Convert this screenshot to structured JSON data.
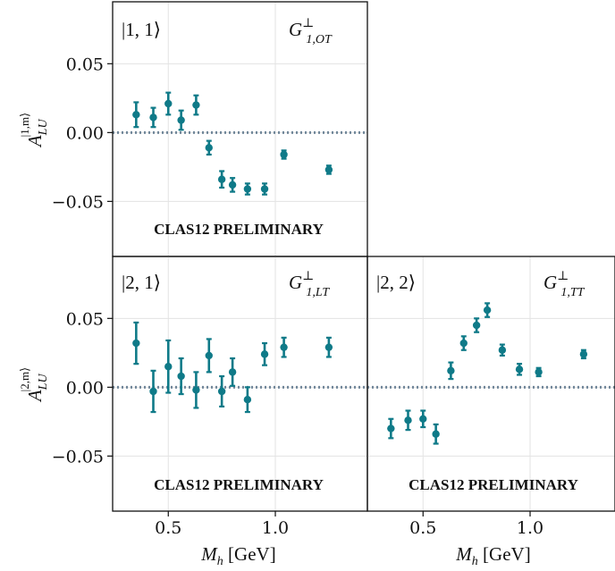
{
  "chart_data": [
    {
      "type": "scatter",
      "panel": "top-left",
      "state_label": "|1, 1⟩",
      "function_label": "G⊥1,OT",
      "watermark": "CLAS12 PRELIMINARY",
      "ylabel": "A_LU^{|1,m⟩}",
      "xlabel": "",
      "ylim": [
        -0.09,
        0.095
      ],
      "xlim": [
        0.24,
        1.43
      ],
      "yticks": [
        "0.05",
        "0.00",
        "−0.05"
      ],
      "xticks": [],
      "zero_line": true,
      "grid": true,
      "points": [
        {
          "x": 0.35,
          "y": 0.013,
          "err": 0.009
        },
        {
          "x": 0.43,
          "y": 0.011,
          "err": 0.007
        },
        {
          "x": 0.5,
          "y": 0.021,
          "err": 0.008
        },
        {
          "x": 0.56,
          "y": 0.009,
          "err": 0.007
        },
        {
          "x": 0.63,
          "y": 0.02,
          "err": 0.007
        },
        {
          "x": 0.69,
          "y": -0.011,
          "err": 0.005
        },
        {
          "x": 0.75,
          "y": -0.034,
          "err": 0.006
        },
        {
          "x": 0.8,
          "y": -0.038,
          "err": 0.005
        },
        {
          "x": 0.87,
          "y": -0.041,
          "err": 0.004
        },
        {
          "x": 0.95,
          "y": -0.041,
          "err": 0.004
        },
        {
          "x": 1.04,
          "y": -0.016,
          "err": 0.003
        },
        {
          "x": 1.25,
          "y": -0.027,
          "err": 0.003
        }
      ]
    },
    {
      "type": "scatter",
      "panel": "bottom-left",
      "state_label": "|2, 1⟩",
      "function_label": "G⊥1,LT",
      "watermark": "CLAS12 PRELIMINARY",
      "ylabel": "A_LU^{|2,m⟩}",
      "xlabel": "M_h [GeV]",
      "ylim": [
        -0.09,
        0.095
      ],
      "xlim": [
        0.24,
        1.43
      ],
      "yticks": [
        "0.05",
        "0.00",
        "−0.05"
      ],
      "xticks": [
        "0.5",
        "1.0"
      ],
      "zero_line": true,
      "grid": true,
      "points": [
        {
          "x": 0.35,
          "y": 0.032,
          "err": 0.015
        },
        {
          "x": 0.43,
          "y": -0.003,
          "err": 0.015
        },
        {
          "x": 0.5,
          "y": 0.015,
          "err": 0.019
        },
        {
          "x": 0.56,
          "y": 0.008,
          "err": 0.013
        },
        {
          "x": 0.63,
          "y": -0.002,
          "err": 0.013
        },
        {
          "x": 0.69,
          "y": 0.023,
          "err": 0.012
        },
        {
          "x": 0.75,
          "y": -0.003,
          "err": 0.011
        },
        {
          "x": 0.8,
          "y": 0.011,
          "err": 0.01
        },
        {
          "x": 0.87,
          "y": -0.009,
          "err": 0.009
        },
        {
          "x": 0.95,
          "y": 0.024,
          "err": 0.008
        },
        {
          "x": 1.04,
          "y": 0.029,
          "err": 0.007
        },
        {
          "x": 1.25,
          "y": 0.029,
          "err": 0.007
        }
      ]
    },
    {
      "type": "scatter",
      "panel": "bottom-right",
      "state_label": "|2, 2⟩",
      "function_label": "G⊥1,TT",
      "watermark": "CLAS12 PRELIMINARY",
      "ylabel": "",
      "xlabel": "M_h [GeV]",
      "ylim": [
        -0.09,
        0.095
      ],
      "xlim": [
        0.24,
        1.43
      ],
      "yticks": [],
      "xticks": [
        "0.5",
        "1.0"
      ],
      "zero_line": true,
      "grid": true,
      "points": [
        {
          "x": 0.35,
          "y": -0.03,
          "err": 0.007
        },
        {
          "x": 0.43,
          "y": -0.024,
          "err": 0.007
        },
        {
          "x": 0.5,
          "y": -0.023,
          "err": 0.006
        },
        {
          "x": 0.56,
          "y": -0.034,
          "err": 0.007
        },
        {
          "x": 0.63,
          "y": 0.012,
          "err": 0.006
        },
        {
          "x": 0.69,
          "y": 0.032,
          "err": 0.005
        },
        {
          "x": 0.75,
          "y": 0.045,
          "err": 0.005
        },
        {
          "x": 0.8,
          "y": 0.056,
          "err": 0.005
        },
        {
          "x": 0.87,
          "y": 0.027,
          "err": 0.004
        },
        {
          "x": 0.95,
          "y": 0.013,
          "err": 0.004
        },
        {
          "x": 1.04,
          "y": 0.011,
          "err": 0.003
        },
        {
          "x": 1.25,
          "y": 0.024,
          "err": 0.003
        }
      ]
    }
  ],
  "labels": {
    "ylabel_top_main": "A",
    "ylabel_top_sub": "LU",
    "ylabel_top_sup": "|1,m⟩",
    "ylabel_bottom_main": "A",
    "ylabel_bottom_sub": "LU",
    "ylabel_bottom_sup": "|2,m⟩",
    "xlabel_main": "M",
    "xlabel_sub": "h",
    "xlabel_unit": " [GeV]",
    "state_tl": "|1, 1⟩",
    "state_bl": "|2, 1⟩",
    "state_br": "|2, 2⟩",
    "func_tl_main": "G",
    "func_tl_sup": "⊥",
    "func_tl_sub": "1,OT",
    "func_bl_main": "G",
    "func_bl_sup": "⊥",
    "func_bl_sub": "1,LT",
    "func_br_main": "G",
    "func_br_sup": "⊥",
    "func_br_sub": "1,TT"
  },
  "colors": {
    "marker": "#0f7a88",
    "zero_line": "#71879a",
    "grid": "#e3e3e3",
    "axes": "#111111"
  }
}
